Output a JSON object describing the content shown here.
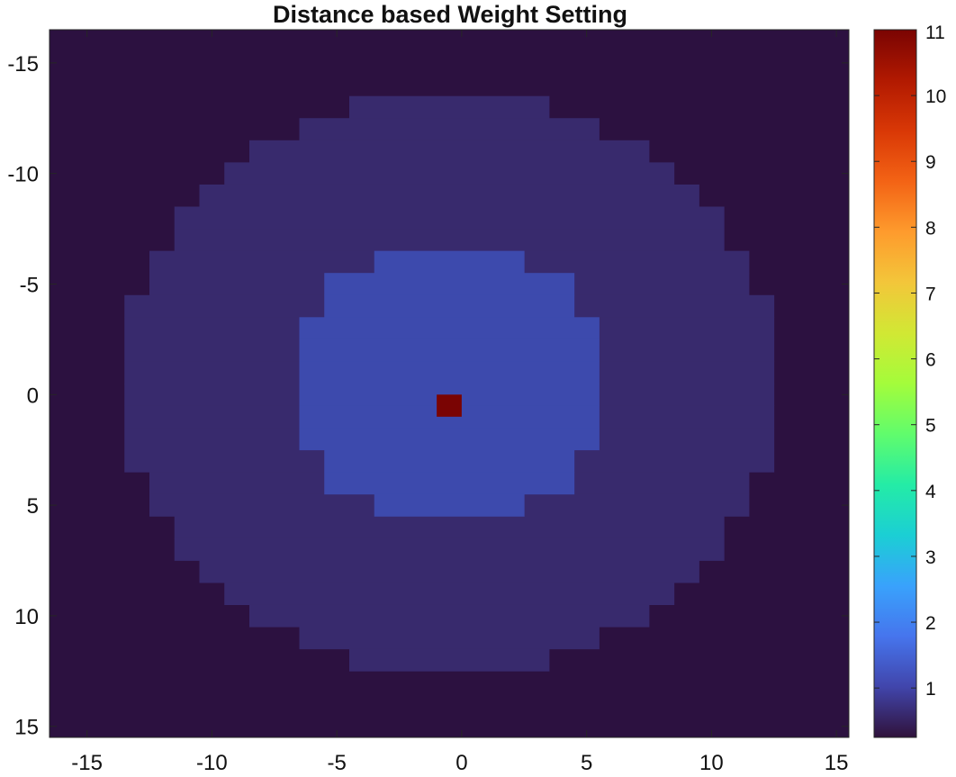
{
  "chart_data": {
    "type": "heatmap",
    "title": "Distance based Weight Setting",
    "xlabel": "",
    "ylabel": "",
    "xlim": [
      -16.5,
      15.5
    ],
    "ylim": [
      -16.5,
      15.5
    ],
    "y_direction": "reversed",
    "xticks": [
      -15,
      -10,
      -5,
      0,
      5,
      10,
      15
    ],
    "yticks": [
      -15,
      -10,
      -5,
      0,
      5,
      10,
      15
    ],
    "colorbar": {
      "range": [
        0.25,
        11
      ],
      "ticks": [
        1,
        2,
        3,
        4,
        5,
        6,
        7,
        8,
        9,
        10,
        11
      ],
      "colormap": "turbo"
    },
    "grid": false,
    "cell_size": 1,
    "background_value": 0.25,
    "rings": [
      {
        "value": 0.5,
        "shape": "disc",
        "radius": 13
      },
      {
        "value": 1.0,
        "shape": "disc",
        "radius": 6.5
      }
    ],
    "peak": {
      "x": -0.5,
      "y": 0.5,
      "value": 11
    },
    "note_center": [
      -0.5,
      -0.5
    ]
  },
  "colors": {
    "background_cell": "#2c1140",
    "outer_ring": "#382a6d",
    "inner_disc": "#3d4aad",
    "peak": "#7a0403"
  }
}
